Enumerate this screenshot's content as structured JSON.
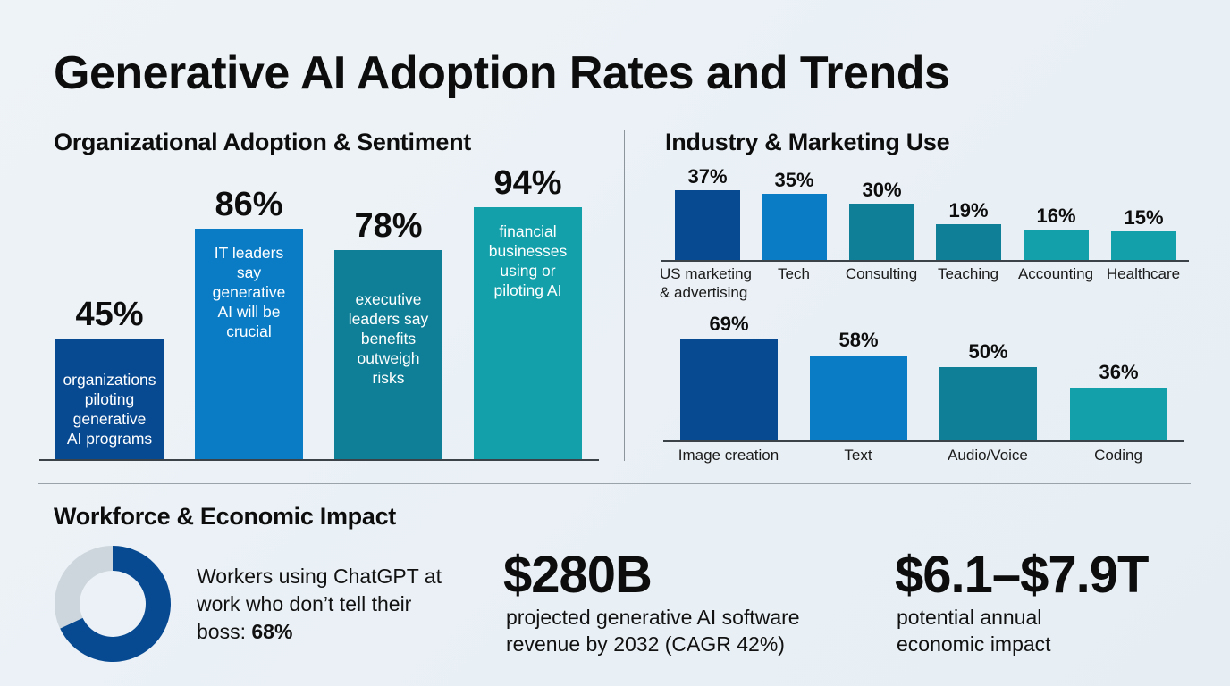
{
  "title": "Generative AI Adoption Rates and Trends",
  "sections": {
    "org": "Organizational Adoption & Sentiment",
    "industry": "Industry & Marketing Use",
    "workforce": "Workforce & Economic Impact"
  },
  "colors": {
    "dark_blue": "#084a92",
    "blue": "#0a7cc6",
    "teal_dark": "#0e7f96",
    "teal": "#13a0aa",
    "donut_gray": "#cdd6dc",
    "text": "#0d0d0d"
  },
  "chart_data": [
    {
      "type": "bar",
      "title": "Organizational Adoption & Sentiment",
      "categories": [
        "organizations piloting generative AI programs",
        "IT leaders say generative AI will be crucial",
        "executive leaders say benefits outweigh risks",
        "financial businesses using or piloting AI"
      ],
      "values": [
        45,
        86,
        78,
        94
      ],
      "value_labels": [
        "45%",
        "86%",
        "78%",
        "94%"
      ],
      "descriptions": [
        [
          "organizations",
          "piloting",
          "generative",
          "AI programs"
        ],
        [
          "IT leaders",
          "say",
          "generative",
          "AI will be",
          "crucial"
        ],
        [
          "executive",
          "leaders say",
          "benefits",
          "outweigh",
          "risks"
        ],
        [
          "financial",
          "businesses",
          "using or",
          "piloting AI"
        ]
      ],
      "bar_colors": [
        "#084a92",
        "#0a7cc6",
        "#0e7f96",
        "#13a0aa"
      ],
      "xlabel": "",
      "ylabel": "",
      "ylim": [
        0,
        100
      ],
      "grid": false
    },
    {
      "type": "bar",
      "title": "Industry & Marketing Use",
      "categories": [
        "US marketing & advertising",
        "Tech",
        "Consulting",
        "Teaching",
        "Accounting",
        "Healthcare"
      ],
      "category_lines": [
        [
          "US marketing",
          "& advertising"
        ],
        [
          "Tech"
        ],
        [
          "Consulting"
        ],
        [
          "Teaching"
        ],
        [
          "Accounting"
        ],
        [
          "Healthcare"
        ]
      ],
      "values": [
        37,
        35,
        30,
        19,
        16,
        15
      ],
      "value_labels": [
        "37%",
        "35%",
        "30%",
        "19%",
        "16%",
        "15%"
      ],
      "bar_colors": [
        "#084a92",
        "#0a7cc6",
        "#0e7f96",
        "#0e7f96",
        "#13a0aa",
        "#13a0aa"
      ],
      "ylim": [
        0,
        40
      ],
      "grid": false
    },
    {
      "type": "bar",
      "title": "",
      "categories": [
        "Image creation",
        "Text",
        "Audio/Voice",
        "Coding"
      ],
      "values": [
        69,
        58,
        50,
        36
      ],
      "value_labels": [
        "69%",
        "58%",
        "50%",
        "36%"
      ],
      "bar_colors": [
        "#084a92",
        "#0a7cc6",
        "#0e7f96",
        "#13a0aa"
      ],
      "ylim": [
        0,
        75
      ],
      "grid": false
    },
    {
      "type": "pie",
      "title": "Workers using ChatGPT at work who don’t tell their boss",
      "values": [
        68,
        32
      ],
      "labels": [
        "don't tell boss",
        "other"
      ],
      "slice_colors": [
        "#084a92",
        "#cdd6dc"
      ]
    }
  ],
  "workforce": {
    "donut_text": "Workers using ChatGPT at work who don’t tell their boss: ",
    "donut_value": "68%",
    "stat1_value": "$280B",
    "stat1_desc_1": "projected generative AI software",
    "stat1_desc_2": "revenue by 2032 (CAGR 42%)",
    "stat2_value": "$6.1–$7.9T",
    "stat2_desc_1": "potential annual",
    "stat2_desc_2": "economic impact"
  }
}
